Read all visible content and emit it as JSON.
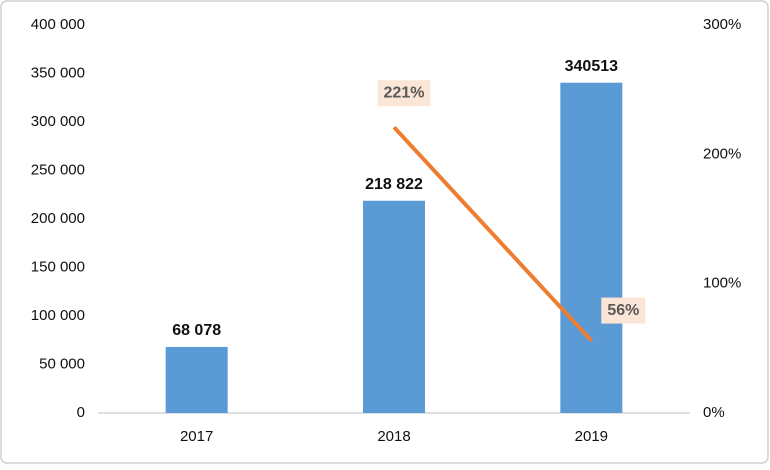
{
  "chart_data": {
    "type": "bar",
    "categories": [
      "2017",
      "2018",
      "2019"
    ],
    "series": [
      {
        "type": "bar",
        "color": "#5b9bd5",
        "values": [
          68078,
          218822,
          340513
        ],
        "value_labels": [
          "68 078",
          "218 822",
          "340513"
        ]
      },
      {
        "type": "line",
        "axis": "y2",
        "color": "#ed7d31",
        "values": [
          null,
          221,
          56
        ],
        "value_labels": [
          null,
          "221%",
          "56%"
        ]
      }
    ],
    "ylim": [
      0,
      400000
    ],
    "yticks": [
      0,
      {
        "value": 50000,
        "label": "50 000"
      },
      {
        "value": 100000,
        "label": "100 000"
      },
      {
        "value": 150000,
        "label": "150 000"
      },
      {
        "value": 200000,
        "label": "200 000"
      },
      {
        "value": 250000,
        "label": "250 000"
      },
      {
        "value": 300000,
        "label": "300 000"
      },
      {
        "value": 350000,
        "label": "350 000"
      },
      {
        "value": 400000,
        "label": "400 000"
      }
    ],
    "y2lim": [
      0,
      300
    ],
    "y2ticks": [
      {
        "value": 0,
        "label": "0%"
      },
      {
        "value": 100,
        "label": "100%"
      },
      {
        "value": 200,
        "label": "200%"
      },
      {
        "value": 300,
        "label": "300%"
      }
    ],
    "grid": false
  }
}
